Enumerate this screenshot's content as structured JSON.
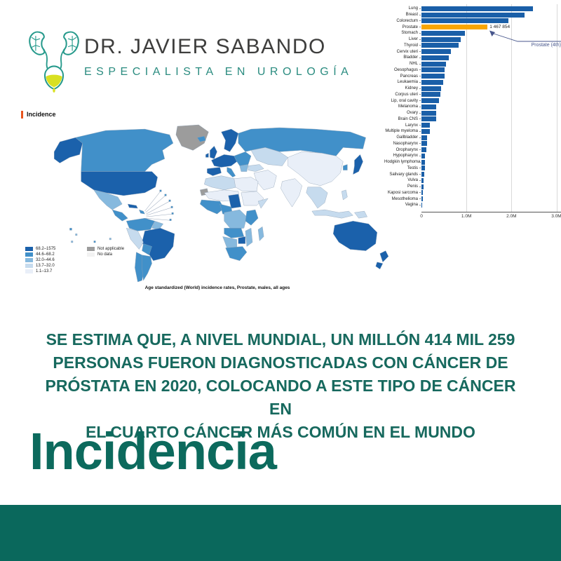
{
  "logo": {
    "doctor_name": "DR. JAVIER SABANDO",
    "specialty": "ESPECIALISTA EN UROLOGÍA",
    "icon": "kidneys-bladder-urology-icon",
    "colors": {
      "teal": "#279a8c",
      "dark_text": "#3e3e3d",
      "subtitle_teal": "#2b8c80",
      "urine_yellow": "#d9e021"
    }
  },
  "map_section": {
    "label": "Incidence",
    "label_marker_color": "#e8541d",
    "caption": "Age standardized (World) incidence rates, Prostate, males, all ages"
  },
  "paragraph": {
    "text": "SE ESTIMA QUE, A NIVEL MUNDIAL, UN MILLÓN 414 MIL 259 PERSONAS FUERON DIAGNOSTICADAS CON CÁNCER DE PRÓSTATA EN 2020, COLOCANDO A ESTE TIPO DE CÁNCER EN EL CUARTO CÁNCER MÁS COMÚN EN EL MUNDO",
    "lines": [
      "SE ESTIMA QUE, A NIVEL MUNDIAL, UN MILLÓN 414 MIL 259",
      "PERSONAS FUERON DIAGNOSTICADAS CON CÁNCER DE",
      "PRÓSTATA EN 2020, COLOCANDO A ESTE TIPO DE CÁNCER EN",
      "EL CUARTO CÁNCER MÁS COMÚN EN EL MUNDO"
    ],
    "color": "#17695e"
  },
  "heading": {
    "text": "Incidencia",
    "color": "#0c6a5d"
  },
  "footer": {
    "color": "#0a685c"
  },
  "chart_data": [
    {
      "type": "bar",
      "orientation": "horizontal",
      "categories": [
        "Lung",
        "Breast",
        "Colorectum",
        "Prostate",
        "Stomach",
        "Liver",
        "Thyroid",
        "Cervix uteri",
        "Bladder",
        "NHL",
        "Oesophagus",
        "Pancreas",
        "Leukaemia",
        "Kidney",
        "Corpus uteri",
        "Lip, oral cavity",
        "Melanoma",
        "Ovary",
        "Brain CNS",
        "Larynx",
        "Multiple myeloma",
        "Gallbladder",
        "Nasopharynx",
        "Oropharynx",
        "Hypopharynx",
        "Hodgkin lymphoma",
        "Testis",
        "Salivary glands",
        "Vulva",
        "Penis",
        "Kaposi sarcoma",
        "Mesothelioma",
        "Vagina"
      ],
      "values": [
        2480000,
        2297000,
        1926000,
        1467854,
        969000,
        866000,
        821000,
        662000,
        614000,
        553000,
        511000,
        510000,
        487000,
        435000,
        420000,
        390000,
        332000,
        325000,
        321000,
        189000,
        188000,
        122000,
        120000,
        106000,
        84000,
        82000,
        74000,
        55000,
        47000,
        42000,
        35000,
        31000,
        19000
      ],
      "bar_color": "#1a5fa8",
      "highlight": {
        "category": "Prostate",
        "value": 1467854,
        "value_label": "1 467 854",
        "annotation": "Prostate (4th)",
        "color": "#f9a602",
        "annotation_color": "#47568c"
      },
      "xticks": [
        "0",
        "1.0M",
        "2.0M",
        "3.0M"
      ],
      "xtick_values": [
        0,
        1000000,
        2000000,
        3000000
      ],
      "xlim": [
        0,
        3070000
      ],
      "grid": "vertical"
    },
    {
      "type": "choropleth",
      "title": "Incidence",
      "caption": "Age standardized (World) incidence rates, Prostate, males, all ages",
      "legend": {
        "position": "bottom-left",
        "items": [
          {
            "range": "68.2–1575",
            "color": "#1b61ab"
          },
          {
            "range": "44.6–68.2",
            "color": "#4190c9"
          },
          {
            "range": "32.0–44.6",
            "color": "#86b9de"
          },
          {
            "range": "13.7–32.0",
            "color": "#c6dbee"
          },
          {
            "range": "1.1–13.7",
            "color": "#e9eff8"
          }
        ],
        "special": [
          {
            "label": "Not applicable",
            "color": "#9c9c9c"
          },
          {
            "label": "No data",
            "color": "#f2f2f2"
          }
        ]
      },
      "regions": {
        "alaska": "68.2–1575",
        "canada": "44.6–68.2",
        "greenland": "Not applicable",
        "usa": "68.2–1575",
        "mexico": "32.0–44.6",
        "central-america": "44.6–68.2",
        "cuba": "68.2–1575",
        "caribbean": "44.6–68.2",
        "colombia-venezuela": "44.6–68.2",
        "guyanas": "32.0–44.6",
        "brazil": "68.2–1575",
        "peru-ecuador": "13.7–32.0",
        "bolivia": "44.6–68.2",
        "chile": "44.6–68.2",
        "argentina": "44.6–68.2",
        "iceland": "44.6–68.2",
        "uk": "68.2–1575",
        "ireland": "68.2–1575",
        "scandinavia": "68.2–1575",
        "western-europe": "68.2–1575",
        "iberia": "68.2–1575",
        "italy": "44.6–68.2",
        "eastern-europe": "44.6–68.2",
        "balkans": "32.0–44.6",
        "russia": "44.6–68.2",
        "central-asia": "13.7–32.0",
        "turkey": "13.7–32.0",
        "middle-east": "1.1–13.7",
        "china": "1.1–13.7",
        "india": "1.1–13.7",
        "southeast-asia": "13.7–32.0",
        "korea": "44.6–68.2",
        "japan": "68.2–1575",
        "philippines": "13.7–32.0",
        "indonesia": "13.7–32.0",
        "papua-new-guinea": "13.7–32.0",
        "north-africa": "13.7–32.0",
        "libya-egypt": "1.1–13.7",
        "western-sahara": "Not applicable",
        "sahel": "1.1–13.7",
        "chad": "68.2–1575",
        "sudan-horn": "1.1–13.7",
        "somalia": "13.7–32.0",
        "west-africa": "44.6–68.2",
        "nigeria-cameroon": "44.6–68.2",
        "central-africa": "32.0–44.6",
        "kenya-tanzania": "44.6–68.2",
        "angola-zambia": "44.6–68.2",
        "zimbabwe": "68.2–1575",
        "mozambique": "32.0–44.6",
        "namibia-botswana": "32.0–44.6",
        "south-africa": "44.6–68.2",
        "madagascar": "32.0–44.6",
        "australia": "68.2–1575",
        "new-zealand": "68.2–1575",
        "hawaii": "44.6–68.2",
        "pacific-islands": "32.0–44.6"
      }
    }
  ]
}
